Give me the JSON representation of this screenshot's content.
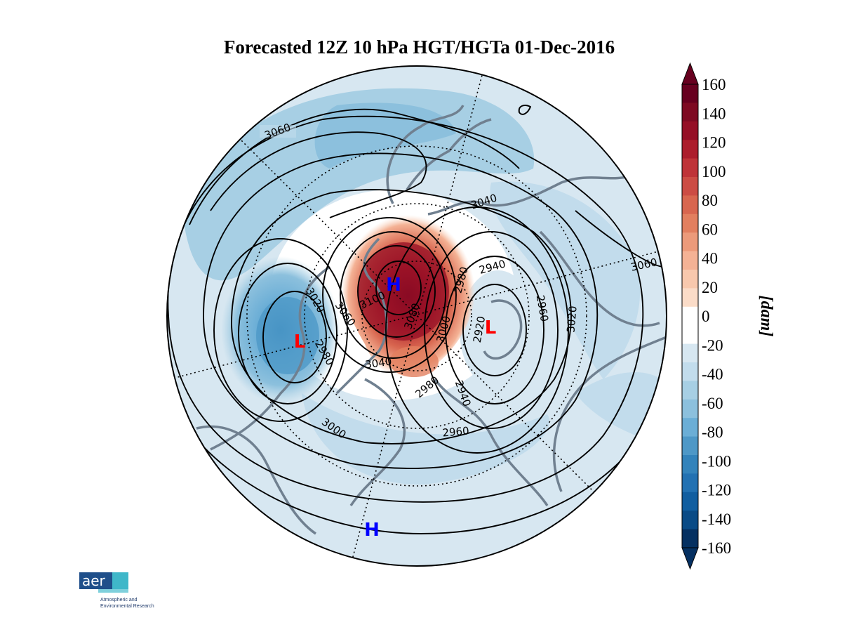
{
  "title": "Forecasted 12Z 10 hPa HGT/HGTa 01-Dec-2016",
  "colorbar": {
    "unit": "[dam]",
    "ticks": [
      "160",
      "140",
      "120",
      "100",
      "80",
      "60",
      "40",
      "20",
      "0",
      "-20",
      "-40",
      "-60",
      "-80",
      "-100",
      "-120",
      "-140",
      "-160"
    ],
    "colors": [
      "#67001f",
      "#7e0a22",
      "#950f26",
      "#ac1d2c",
      "#bf3338",
      "#cc4c44",
      "#d8664f",
      "#e27f5f",
      "#ec9a7a",
      "#f4b295",
      "#f8c8ad",
      "#fbdcc8",
      "#ffffff",
      "#ffffff",
      "#d7e7f1",
      "#c2dcec",
      "#a7cfe4",
      "#8cc0dd",
      "#6baed6",
      "#4e98c7",
      "#3383bb",
      "#2271b2",
      "#115ea0",
      "#0a4b86",
      "#053061"
    ]
  },
  "contour_labels": [
    "3060",
    "3040",
    "3060",
    "3020",
    "3060",
    "3100",
    "3080",
    "2980",
    "2940",
    "3000",
    "2920",
    "2960",
    "3020",
    "3040",
    "2980",
    "2940",
    "2960",
    "3000",
    "2980"
  ],
  "pressure_centers": [
    {
      "type": "H",
      "color": "#0000ff"
    },
    {
      "type": "L",
      "color": "#ff0000"
    },
    {
      "type": "L",
      "color": "#ff0000"
    },
    {
      "type": "H",
      "color": "#0000ff"
    }
  ],
  "logo": {
    "mark": "aer",
    "line1": "Atmospheric and",
    "line2": "Environmental Research"
  }
}
